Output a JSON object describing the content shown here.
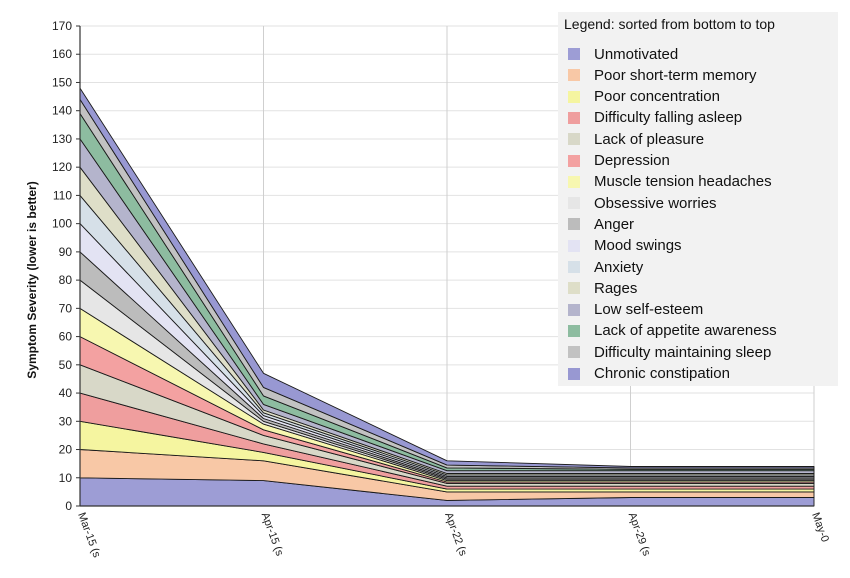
{
  "chart_data": {
    "type": "area",
    "stacked": true,
    "ylabel": "Symptom Severity (lower is better)",
    "xlabel": "",
    "ylim": [
      0,
      170
    ],
    "yticks": [
      0,
      10,
      20,
      30,
      40,
      50,
      60,
      70,
      80,
      90,
      100,
      110,
      120,
      130,
      140,
      150,
      160,
      170
    ],
    "categories": [
      "Mar-15 (s",
      "Apr-15 (s",
      "Apr-22 (s",
      "Apr-29 (s",
      "May-0"
    ],
    "grid": true,
    "legend_position": "top-right",
    "legend_title": "Legend: sorted from bottom to top",
    "series": [
      {
        "name": "Unmotivated",
        "color": "#9d9dd5",
        "values": [
          10,
          9,
          2,
          3,
          3
        ]
      },
      {
        "name": "Poor short-term memory",
        "color": "#f8c8a6",
        "values": [
          10,
          7,
          3,
          2,
          2
        ]
      },
      {
        "name": "Poor concentration",
        "color": "#f5f5a0",
        "values": [
          10,
          3,
          1,
          1,
          1
        ]
      },
      {
        "name": "Difficulty falling asleep",
        "color": "#ef9e9e",
        "values": [
          10,
          3,
          1,
          1,
          1
        ]
      },
      {
        "name": "Lack of pleasure",
        "color": "#d8d8c8",
        "values": [
          10,
          3,
          1,
          1,
          1
        ]
      },
      {
        "name": "Depression",
        "color": "#f3a1a1",
        "values": [
          10,
          2,
          0.5,
          0.5,
          0.5
        ]
      },
      {
        "name": "Muscle tension headaches",
        "color": "#f7f7b0",
        "values": [
          10,
          2,
          0.5,
          0.5,
          0.5
        ]
      },
      {
        "name": "Obsessive worries",
        "color": "#e6e6e6",
        "values": [
          10,
          1,
          0.5,
          0.5,
          0.5
        ]
      },
      {
        "name": "Anger",
        "color": "#bcbcbc",
        "values": [
          10,
          1,
          0.5,
          0.5,
          0.5
        ]
      },
      {
        "name": "Mood swings",
        "color": "#e3e3f3",
        "values": [
          10,
          1,
          0.5,
          0.5,
          0.5
        ]
      },
      {
        "name": "Anxiety",
        "color": "#d6e0e8",
        "values": [
          10,
          1,
          0.5,
          0.5,
          0.5
        ]
      },
      {
        "name": "Rages",
        "color": "#dedec8",
        "values": [
          10,
          1,
          0.5,
          0.5,
          0.5
        ]
      },
      {
        "name": "Low self-esteem",
        "color": "#b4b4cc",
        "values": [
          10,
          2,
          1,
          1,
          1
        ]
      },
      {
        "name": "Lack of appetite awareness",
        "color": "#8dbca0",
        "values": [
          9,
          3,
          1,
          0.5,
          0.5
        ]
      },
      {
        "name": "Difficulty maintaining sleep",
        "color": "#c2c2c2",
        "values": [
          5,
          3,
          1,
          0.5,
          0.5
        ]
      },
      {
        "name": "Chronic constipation",
        "color": "#9898d2",
        "values": [
          4,
          5,
          1.5,
          0.5,
          0.5
        ]
      }
    ]
  }
}
